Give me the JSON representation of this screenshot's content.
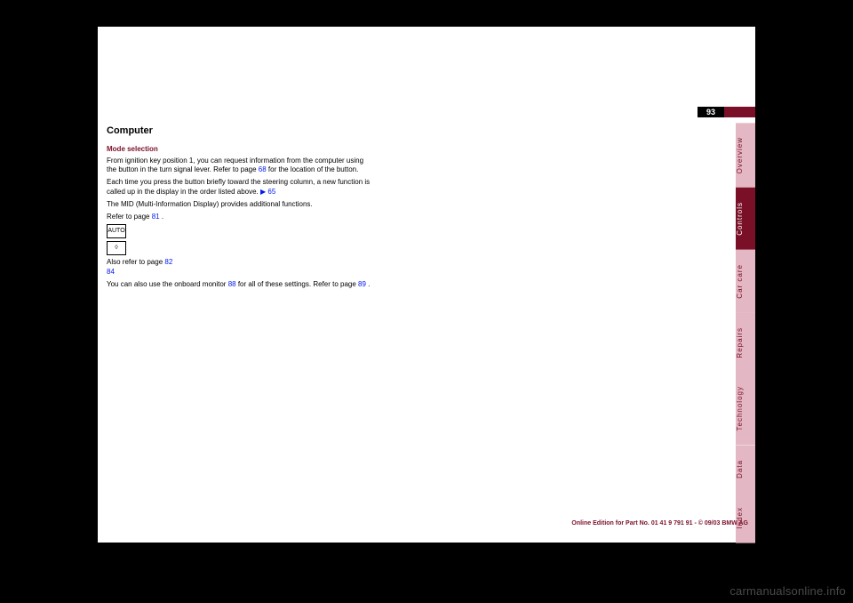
{
  "page_number": "93",
  "tabs": [
    {
      "label": "Overview",
      "active": false
    },
    {
      "label": "Controls",
      "active": true
    },
    {
      "label": "Car care",
      "active": false
    },
    {
      "label": "Repairs",
      "active": false
    },
    {
      "label": "Technology",
      "active": false
    },
    {
      "label": "Data",
      "active": false
    },
    {
      "label": "Index",
      "active": false
    }
  ],
  "title": "Computer",
  "subhead": "Mode selection",
  "body": {
    "p1a": "From ignition key position 1, you can request information from the computer using the button in the turn signal lever. Refer to page ",
    "p1link": "68",
    "p1b": " for the location of the button.",
    "p2a": "Each time you press the button briefly toward the steering column, a new function is called up in the display in the order listed above.",
    "tri": "▶",
    "p2link": "65",
    "p3": "The MID (Multi-Information Display) provides additional functions.",
    "p4a": "Refer to page ",
    "p4link": "81",
    "p4b": ".",
    "auto_label": "AUTO",
    "p5": "Also refer to page",
    "p5link1": "82",
    "p5link2": "84",
    "p6a": "You can also use the onboard monitor ",
    "p6link": "88",
    "p6b": " for all of these settings. Refer to page ",
    "p6link2": "89",
    "p6c": "."
  },
  "footer": "Online Edition for Part No. 01 41 9 791 91 - © 09/03 BMW AG",
  "watermark": "carmanualsonline.info",
  "colors": {
    "brand": "#7a1028",
    "tab_inactive": "#e3b8c4",
    "link": "#0018ee"
  }
}
